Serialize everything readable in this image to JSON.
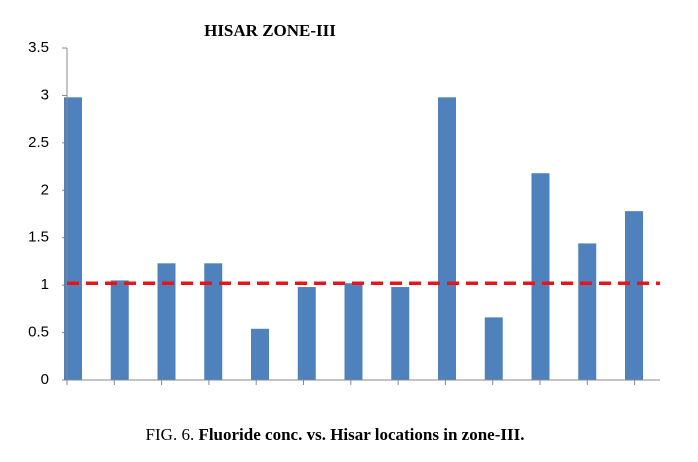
{
  "chart_data": {
    "type": "bar",
    "title": "HISAR ZONE-III",
    "categories": [
      null,
      null,
      null,
      null,
      null,
      null,
      null,
      null,
      null,
      null,
      null,
      null,
      null
    ],
    "values": [
      2.98,
      1.05,
      1.23,
      1.23,
      0.54,
      0.98,
      1.02,
      0.98,
      2.98,
      0.66,
      2.18,
      1.44,
      1.78
    ],
    "color": "#4f81bd",
    "ylim": [
      0,
      3.5
    ],
    "yticks": [
      0,
      0.5,
      1,
      1.5,
      2,
      2.5,
      3,
      3.5
    ],
    "grid": false,
    "reference_line": {
      "value": 1.02,
      "color": "#e8141b"
    },
    "caption": {
      "label": "FIG. 6.",
      "text": "Fluoride conc. vs. Hisar locations in zone-III."
    }
  }
}
